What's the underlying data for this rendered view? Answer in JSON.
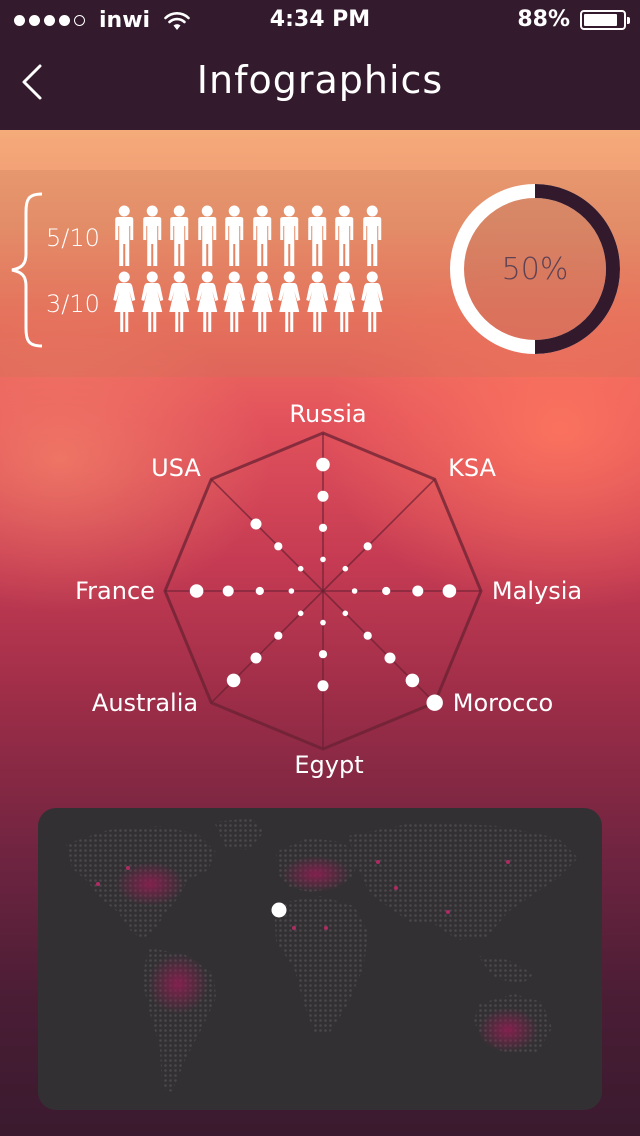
{
  "status": {
    "carrier": "inwi",
    "time": "4:34 PM",
    "battery_percent": "88%",
    "battery_level": 0.88,
    "signal_bars_filled": 4,
    "signal_bars_total": 5
  },
  "nav": {
    "title": "Infographics",
    "back_icon": "chevron-left-icon"
  },
  "stats": {
    "men_label": "5/10",
    "women_label": "3/10",
    "men_icon": "man-icon",
    "women_icon": "woman-icon",
    "men_count": 10,
    "women_count": 10,
    "donut_label": "50%",
    "donut_value": 0.5,
    "donut_colors": {
      "filled": "#33192c",
      "track": "#ffffff"
    }
  },
  "chart_data": {
    "type": "radar",
    "axes": [
      "Russia",
      "KSA",
      "Malysia",
      "Morocco",
      "Egypt",
      "Australia",
      "France",
      "USA"
    ],
    "levels": 5,
    "points_per_axis": [
      4,
      2,
      4,
      5,
      3,
      4,
      4,
      3
    ]
  },
  "map": {
    "marker": "location-marker",
    "colors": {
      "background": "#333033",
      "land": "#464246",
      "hotspot": "#8a1f50"
    }
  },
  "colors": {
    "header": "#331a2c",
    "accent": "#e2525c"
  }
}
